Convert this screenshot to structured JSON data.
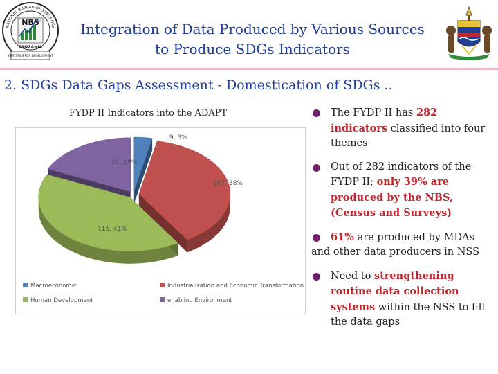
{
  "header": {
    "title_line1": "Integration of Data Produced by Various Sources",
    "title_line2": "to Produce SDGs Indicators",
    "left_logo": {
      "text_ring": "NATIONAL BUREAU OF STATISTICS",
      "abbr": "NBS",
      "country": "TANZANIA",
      "motto": "STATISTICS FOR DEVELOPMENT"
    },
    "right_logo_icon": "coat-of-arms-icon"
  },
  "subtitle": "2. SDGs Data Gaps Assessment - Domestication of SDGs ..",
  "chart_data": {
    "type": "pie",
    "title": "FYDP II Indicators into the ADAPT",
    "slices": [
      {
        "name": "Macroeconomic",
        "value": 9,
        "label": "9, 3%",
        "color": "#4f81bd"
      },
      {
        "name": "Industrialization and Economic Transformation",
        "value": 107,
        "label": "107, 38%",
        "color": "#c0504d"
      },
      {
        "name": "Human Development",
        "value": 115,
        "label": "115, 41%",
        "color": "#9bbb59"
      },
      {
        "name": "enabling Environment",
        "value": 51,
        "label": "51, 18%",
        "color": "#8064a2"
      }
    ],
    "legend_position": "bottom"
  },
  "bullets": {
    "b1_pre": "The FYDP II has ",
    "b1_hl": "282 indicators",
    "b1_post": " classified into four   themes",
    "b2_pre": "Out of 282 indicators of the FYDP  II; ",
    "b2_hl": "only 39%  are produced by the  NBS, (Census and Surveys)",
    "b3_hl": "61%",
    "b3_post": " are produced by      MDAs and other data       producers  in NSS",
    "b4_pre": "Need to ",
    "b4_hl": "strengthening routine  data  collection systems",
    "b4_post": " within  the NSS to fill the data gaps"
  },
  "colors": {
    "title_blue": "#1f3f98",
    "highlight_red": "#c0282e",
    "bullet_purple": "#70206b"
  }
}
